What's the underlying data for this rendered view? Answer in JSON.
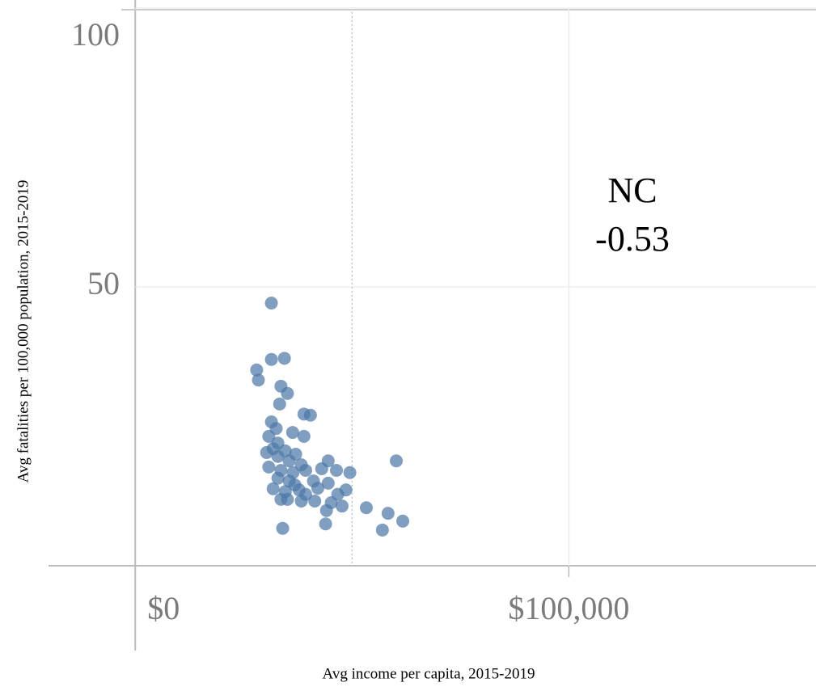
{
  "chart_data": {
    "type": "scatter",
    "x_label": "Avg income per capita, 2015-2019",
    "y_label": "Avg fatalities per 100,000 population, 2015-2019",
    "annotations": [
      "NC",
      "-0.53"
    ],
    "xlim": [
      -20000,
      157000
    ],
    "ylim": [
      0,
      100
    ],
    "xticks": [
      {
        "value": 0,
        "label": "$0"
      },
      {
        "value": 100000,
        "label": "$100,000"
      }
    ],
    "yticks": [
      50,
      100
    ],
    "grid": true,
    "reference_line_x": 50000,
    "color": "#4e79a7",
    "x": [
      31400,
      31400,
      34400,
      28000,
      28400,
      33600,
      35100,
      33300,
      38900,
      40400,
      31400,
      36300,
      30800,
      38900,
      32900,
      31800,
      34600,
      37000,
      32900,
      35500,
      38300,
      44500,
      60200,
      30800,
      33600,
      36400,
      39300,
      43000,
      46400,
      49500,
      32900,
      35500,
      41100,
      44500,
      31800,
      34600,
      37800,
      42100,
      48600,
      35100,
      38300,
      41400,
      45200,
      47700,
      53300,
      44100,
      58300,
      61700,
      43900,
      57000,
      34000,
      30300,
      32500,
      36800,
      39300,
      46700,
      33600
    ],
    "y": [
      47.1,
      37.0,
      37.2,
      35.1,
      33.3,
      32.2,
      30.9,
      29.0,
      27.2,
      27.0,
      25.8,
      23.9,
      23.2,
      23.2,
      22.0,
      21.0,
      20.6,
      20.0,
      19.6,
      18.8,
      18.1,
      18.8,
      18.8,
      17.7,
      17.1,
      16.7,
      17.1,
      17.4,
      17.1,
      16.7,
      15.7,
      15.2,
      15.2,
      14.8,
      13.8,
      13.3,
      13.6,
      13.9,
      13.6,
      11.9,
      11.6,
      11.6,
      11.3,
      10.7,
      10.4,
      9.9,
      9.4,
      8.0,
      7.5,
      6.4,
      6.7,
      20.3,
      24.6,
      14.5,
      12.8,
      12.8,
      11.9
    ]
  }
}
